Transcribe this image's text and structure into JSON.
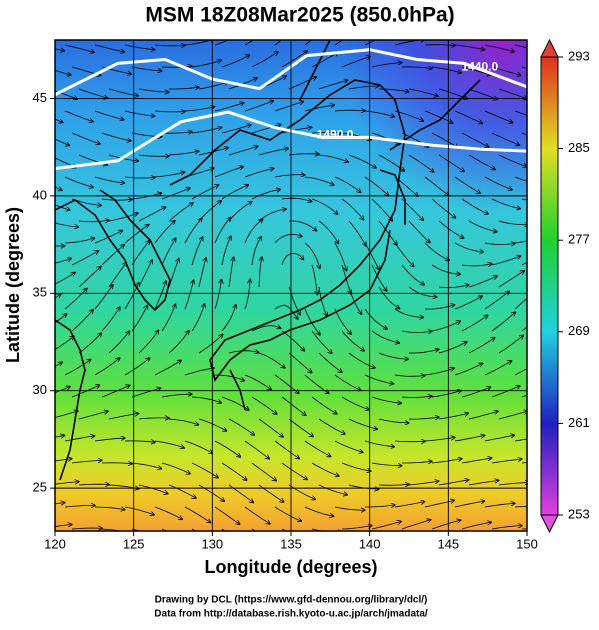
{
  "chart_data": {
    "type": "map",
    "title": "MSM 18Z08Mar2025 (850.0hPa)",
    "x_label": "Longitude (degrees)",
    "y_label": "Latitude  (degrees)",
    "xlim": [
      120,
      150
    ],
    "xticks": [
      120,
      125,
      130,
      135,
      140,
      145,
      150
    ],
    "ylim": [
      22.8,
      48
    ],
    "yticks": [
      25,
      30,
      35,
      40,
      45
    ],
    "grid": true,
    "colorbar": {
      "clim": [
        253,
        293
      ],
      "ticks": [
        253,
        261,
        269,
        277,
        285,
        293
      ]
    },
    "contours": [
      {
        "value": 1440,
        "label": "1440.0"
      },
      {
        "value": 1490,
        "label": "1490.0"
      }
    ],
    "credits": [
      "Drawing by DCL (https://www.gfd-dennou.org/library/dcl/)",
      "Data from http://database.rish.kyoto-u.ac.jp/arch/jmadata/"
    ]
  }
}
